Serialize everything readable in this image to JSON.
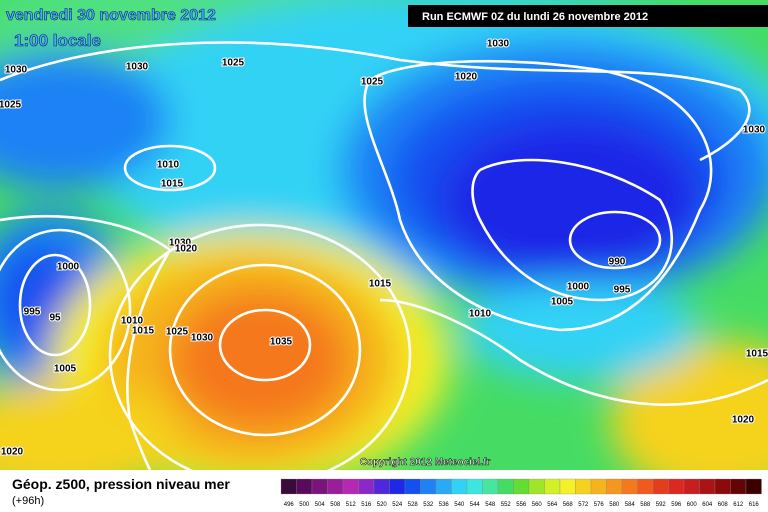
{
  "header": {
    "date": "vendredi 30 novembre 2012",
    "time": "1:00 locale",
    "run": "Run ECMWF 0Z du lundi 26 novembre 2012"
  },
  "copyright": "Copyright 2012 Meteociel.fr",
  "footer": {
    "title": "Géop. z500, pression niveau mer",
    "subtitle": "(+96h)"
  },
  "isobar_labels": [
    "1030",
    "1025",
    "1030",
    "1020",
    "1025",
    "1030",
    "1025",
    "1030",
    "1010",
    "1015",
    "1000",
    "1030",
    "1020",
    "995",
    "95",
    "1010",
    "1015",
    "1025",
    "1030",
    "1035",
    "1005",
    "1020",
    "1015",
    "1010",
    "990",
    "1000",
    "995",
    "1005",
    "1015",
    "1020"
  ],
  "legend": {
    "labels": [
      496,
      500,
      504,
      508,
      512,
      516,
      520,
      524,
      528,
      532,
      536,
      540,
      544,
      548,
      552,
      556,
      560,
      564,
      568,
      572,
      576,
      580,
      584,
      588,
      592,
      596,
      600,
      604,
      608,
      612,
      616
    ],
    "colors": [
      "#3a0a3a",
      "#5a0a5a",
      "#7a147a",
      "#9a1e9a",
      "#b428b4",
      "#8c28c8",
      "#5028dc",
      "#1e28e6",
      "#1450f0",
      "#1e82f5",
      "#28aaf5",
      "#32d2f5",
      "#3ce6dc",
      "#46e6a0",
      "#46dc64",
      "#64dc32",
      "#a0e628",
      "#d2f028",
      "#f5f028",
      "#f5d21e",
      "#f5b41e",
      "#f5961e",
      "#f5781e",
      "#f05a1e",
      "#e63c1e",
      "#dc281e",
      "#c81e1e",
      "#aa1414",
      "#8c0a0a",
      "#640505",
      "#3c0000"
    ]
  }
}
